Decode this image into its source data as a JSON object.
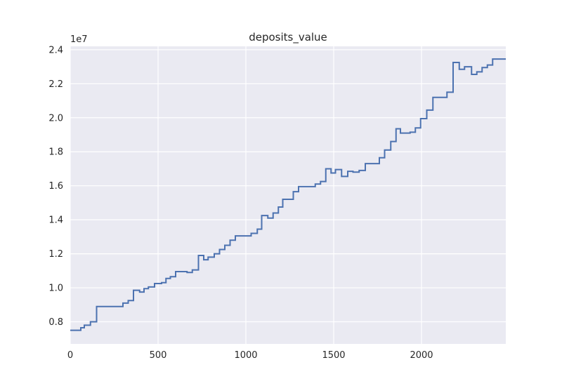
{
  "chart_data": {
    "type": "line",
    "title": "deposits_value",
    "xlabel": "",
    "ylabel": "",
    "y_offset_label": "1e7",
    "xlim": [
      0,
      2480
    ],
    "ylim": [
      0.67,
      2.42
    ],
    "x_ticks": [
      0,
      500,
      1000,
      1500,
      2000
    ],
    "x_tick_labels": [
      "0",
      "500",
      "1000",
      "1500",
      "2000"
    ],
    "y_ticks": [
      0.8,
      1.0,
      1.2,
      1.4,
      1.6,
      1.8,
      2.0,
      2.2,
      2.4
    ],
    "y_tick_labels": [
      "0.8",
      "1.0",
      "1.2",
      "1.4",
      "1.6",
      "1.8",
      "2.0",
      "2.2",
      "2.4"
    ],
    "grid": true,
    "style": "seaborn-darkgrid",
    "colors": {
      "background": "#eaeaf2",
      "grid": "#ffffff",
      "line": "#4c72b0",
      "text": "#262626"
    },
    "series": [
      {
        "step": "post",
        "points": [
          [
            0,
            0.75
          ],
          [
            60,
            0.765
          ],
          [
            80,
            0.78
          ],
          [
            115,
            0.8
          ],
          [
            150,
            0.89
          ],
          [
            300,
            0.91
          ],
          [
            330,
            0.925
          ],
          [
            360,
            0.985
          ],
          [
            395,
            0.975
          ],
          [
            420,
            0.995
          ],
          [
            445,
            1.005
          ],
          [
            480,
            1.025
          ],
          [
            520,
            1.03
          ],
          [
            545,
            1.055
          ],
          [
            570,
            1.065
          ],
          [
            600,
            1.095
          ],
          [
            665,
            1.09
          ],
          [
            695,
            1.105
          ],
          [
            730,
            1.19
          ],
          [
            760,
            1.165
          ],
          [
            785,
            1.18
          ],
          [
            820,
            1.2
          ],
          [
            850,
            1.225
          ],
          [
            880,
            1.25
          ],
          [
            910,
            1.28
          ],
          [
            940,
            1.305
          ],
          [
            1030,
            1.32
          ],
          [
            1065,
            1.345
          ],
          [
            1090,
            1.425
          ],
          [
            1125,
            1.41
          ],
          [
            1155,
            1.44
          ],
          [
            1185,
            1.475
          ],
          [
            1210,
            1.52
          ],
          [
            1270,
            1.565
          ],
          [
            1300,
            1.595
          ],
          [
            1395,
            1.61
          ],
          [
            1425,
            1.625
          ],
          [
            1455,
            1.7
          ],
          [
            1485,
            1.675
          ],
          [
            1510,
            1.695
          ],
          [
            1545,
            1.655
          ],
          [
            1580,
            1.685
          ],
          [
            1610,
            1.68
          ],
          [
            1645,
            1.69
          ],
          [
            1680,
            1.73
          ],
          [
            1760,
            1.765
          ],
          [
            1790,
            1.81
          ],
          [
            1825,
            1.86
          ],
          [
            1855,
            1.935
          ],
          [
            1880,
            1.91
          ],
          [
            1935,
            1.915
          ],
          [
            1965,
            1.94
          ],
          [
            1995,
            1.995
          ],
          [
            2030,
            2.045
          ],
          [
            2065,
            2.12
          ],
          [
            2145,
            2.15
          ],
          [
            2180,
            2.325
          ],
          [
            2215,
            2.285
          ],
          [
            2245,
            2.3
          ],
          [
            2285,
            2.255
          ],
          [
            2315,
            2.27
          ],
          [
            2345,
            2.295
          ],
          [
            2375,
            2.31
          ],
          [
            2405,
            2.345
          ],
          [
            2480,
            2.345
          ]
        ]
      }
    ]
  }
}
